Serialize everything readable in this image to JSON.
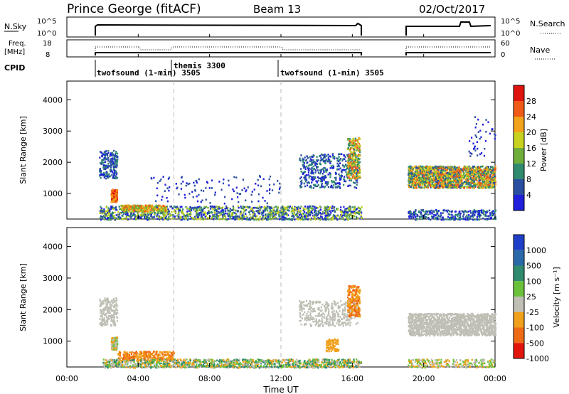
{
  "header": {
    "station": "Prince George (fitACF)",
    "beam": "Beam 13",
    "date": "02/Oct/2017"
  },
  "strip_panels": {
    "nsky": {
      "label": "N.Sky",
      "ticks": [
        "10^5",
        "10^0"
      ],
      "right_label": "N.Search",
      "right_ticks": [
        "10^5",
        "10^0"
      ]
    },
    "freq": {
      "label_line1": "Freq.",
      "label_line2": "[MHz]",
      "ticks": [
        "18",
        "8"
      ],
      "right_label": "Nave",
      "right_ticks": [
        "60",
        "0"
      ]
    },
    "cpid": {
      "label": "CPID",
      "programs": [
        {
          "text": "twofsound (1-min) 3505",
          "start_hour": 1.7
        },
        {
          "text": "themis 3300",
          "start_hour": 6.0
        },
        {
          "text": "twofsound (1-min) 3505",
          "start_hour": 12.0
        }
      ]
    }
  },
  "power_panel": {
    "ylabel": "Slant Range [km]",
    "yticks": [
      "1000",
      "2000",
      "3000",
      "4000"
    ],
    "colorbar_label": "Power [dB]",
    "colorbar_ticks": [
      "4",
      "8",
      "12",
      "16",
      "20",
      "24",
      "28"
    ],
    "colors": [
      "#1f1fdc",
      "#2a4fa0",
      "#2f8a6e",
      "#6fae3a",
      "#c8d21e",
      "#f2a21b",
      "#ef5a16",
      "#e0140e"
    ]
  },
  "velocity_panel": {
    "ylabel": "Slant Range [km]",
    "yticks": [
      "1000",
      "2000",
      "3000",
      "4000"
    ],
    "colorbar_label": "Velocity [m s⁻¹]",
    "colorbar_ticks": [
      "1000",
      "500",
      "100",
      "25",
      "-25",
      "-100",
      "-500",
      "-1000"
    ],
    "colors": [
      "#1f3fc8",
      "#2b6aa8",
      "#2f8a6e",
      "#6bc23a",
      "#bfbfb5",
      "#f0a01a",
      "#ef6a15",
      "#e3140c"
    ]
  },
  "xaxis": {
    "label": "Time UT",
    "ticks": [
      "00:00",
      "04:00",
      "08:00",
      "12:00",
      "16:00",
      "20:00",
      "00:00"
    ]
  },
  "chart_data": {
    "type": "heatmap",
    "title": "Prince George (fitACF)",
    "xlabel": "Time UT",
    "ylabel": "Slant Range [km]",
    "xlim_hours": [
      0,
      24
    ],
    "ylim_km": [
      180,
      4600
    ],
    "data_gaps_hours": [
      [
        16.5,
        19.1
      ]
    ],
    "power_echo_regions": [
      {
        "t_start": 1.8,
        "t_end": 2.8,
        "r_start": 1500,
        "r_end": 2400,
        "power_db": "8-12"
      },
      {
        "t_start": 2.5,
        "t_end": 2.8,
        "r_start": 800,
        "r_end": 1100,
        "power_db": "24-28"
      },
      {
        "t_start": 2.0,
        "t_end": 16.5,
        "r_start": 180,
        "r_end": 600,
        "power_db": "4-20"
      },
      {
        "t_start": 13.0,
        "t_end": 16.3,
        "r_start": 1200,
        "r_end": 2400,
        "power_db": "4-12"
      },
      {
        "t_start": 15.8,
        "t_end": 16.4,
        "r_start": 1500,
        "r_end": 2800,
        "power_db": "12-24"
      },
      {
        "t_start": 19.1,
        "t_end": 24.0,
        "r_start": 1200,
        "r_end": 1900,
        "power_db": "8-24"
      }
    ],
    "velocity_echo_regions": [
      {
        "t_start": 1.8,
        "t_end": 2.8,
        "r_start": 1500,
        "r_end": 2400,
        "velocity": "-25 to 25"
      },
      {
        "t_start": 2.8,
        "t_end": 6.0,
        "r_start": 400,
        "r_end": 700,
        "velocity": "-100 to -500"
      },
      {
        "t_start": 13.0,
        "t_end": 16.0,
        "r_start": 1500,
        "r_end": 2300,
        "velocity": "-25 to 25"
      },
      {
        "t_start": 15.8,
        "t_end": 16.4,
        "r_start": 1800,
        "r_end": 2800,
        "velocity": "-100 to -500"
      },
      {
        "t_start": 19.1,
        "t_end": 24.0,
        "r_start": 1200,
        "r_end": 1900,
        "velocity": "-25 to 25"
      }
    ]
  }
}
